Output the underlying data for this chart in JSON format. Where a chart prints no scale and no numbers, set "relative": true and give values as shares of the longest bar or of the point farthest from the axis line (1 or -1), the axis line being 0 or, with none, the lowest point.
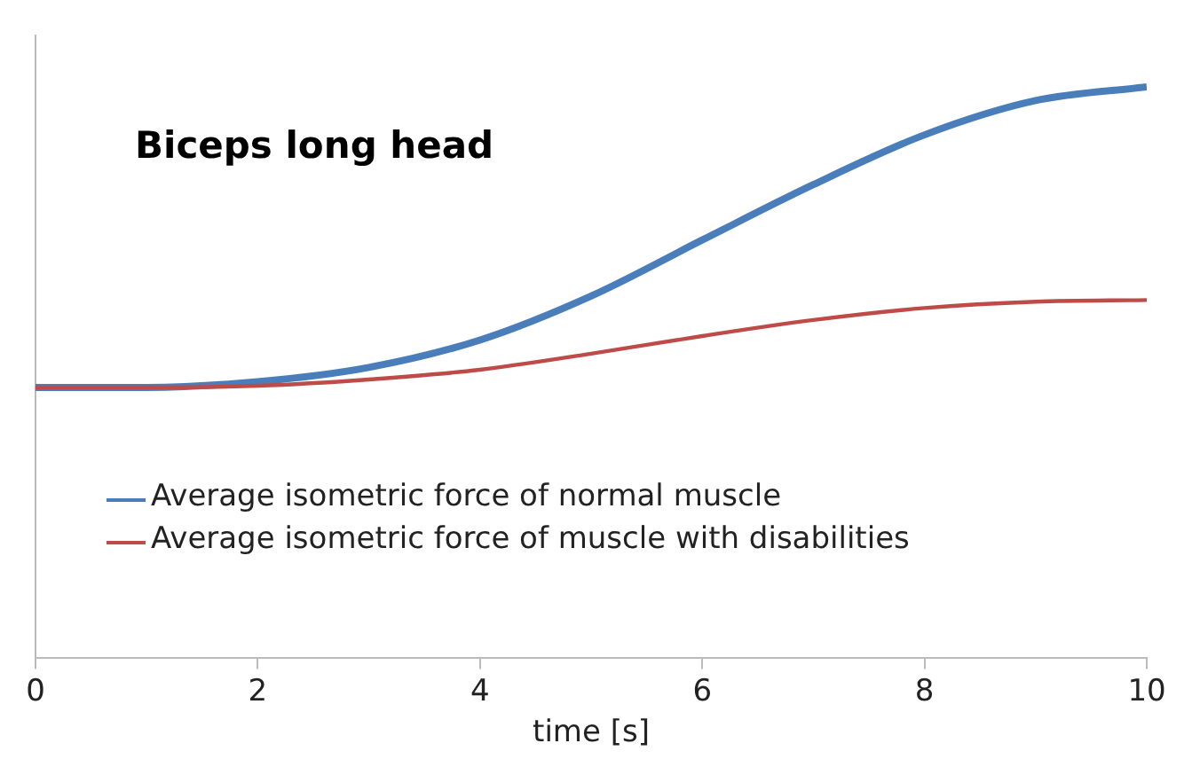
{
  "chart_data": {
    "type": "line",
    "title": "Biceps long head",
    "xlabel": "time [s]",
    "relative": true,
    "x": [
      0,
      1,
      2,
      3,
      4,
      5,
      6,
      7,
      8,
      9,
      10
    ],
    "xlim": [
      0,
      10
    ],
    "xticks": [
      0,
      2,
      4,
      6,
      8,
      10
    ],
    "series": [
      {
        "name": "Average isometric force of normal muscle",
        "color": "#4a7ebb",
        "values": [
          0.474,
          0.474,
          0.484,
          0.509,
          0.557,
          0.634,
          0.732,
          0.829,
          0.916,
          0.976,
          1
        ]
      },
      {
        "name": "Average isometric force of muscle with disabilities",
        "color": "#be4b48",
        "values": [
          0.474,
          0.474,
          0.477,
          0.488,
          0.505,
          0.533,
          0.564,
          0.592,
          0.613,
          0.624,
          0.627
        ]
      }
    ],
    "grid": false,
    "legend": "bottom left",
    "marker": "none",
    "line_style": "solid"
  }
}
